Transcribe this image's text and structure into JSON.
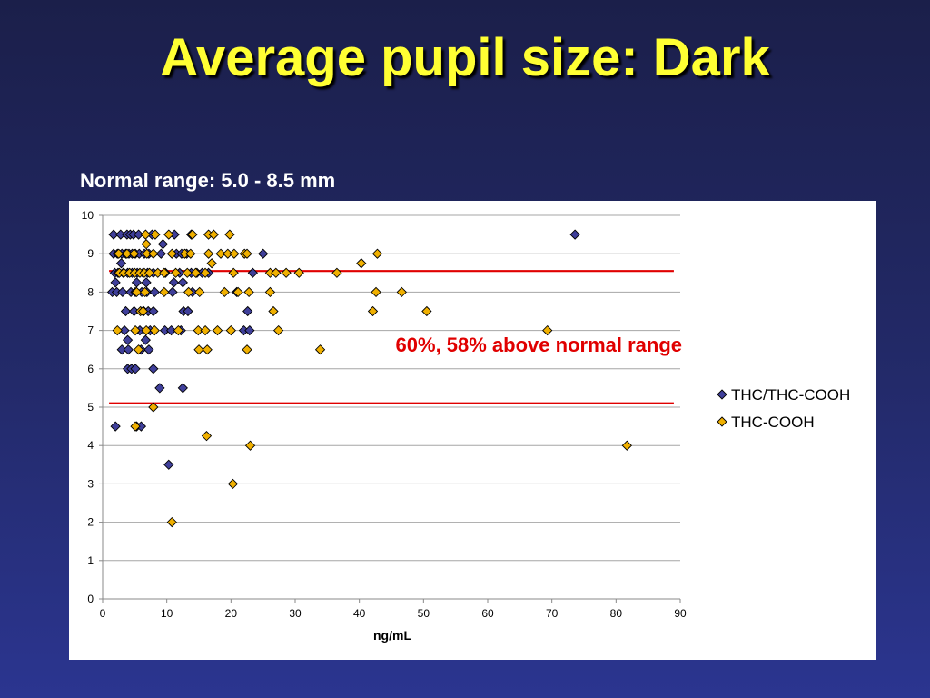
{
  "slide": {
    "title": "Average pupil size:  Dark",
    "subtitle": "Normal range:  5.0 - 8.5 mm"
  },
  "colors": {
    "background": "#232a6a",
    "title": "#ffff33",
    "series1": "#3f3f9a",
    "series2": "#f0b000",
    "reference_line": "#e00000"
  },
  "chart_data": {
    "type": "scatter",
    "title": "Average pupil size:  Dark",
    "xlabel": "ng/mL",
    "ylabel": "",
    "xlim": [
      0,
      90
    ],
    "ylim": [
      0,
      10
    ],
    "x_ticks": [
      "0",
      "10",
      "20",
      "30",
      "40",
      "50",
      "60",
      "70",
      "80",
      "90"
    ],
    "y_ticks": [
      "0",
      "1",
      "2",
      "3",
      "4",
      "5",
      "6",
      "7",
      "8",
      "9",
      "10"
    ],
    "grid": true,
    "legend_position": "right",
    "annotation": "60%, 58% above normal range",
    "reference_lines": [
      {
        "name": "normal-range-upper",
        "y": 8.55,
        "x_start": 1,
        "x_end": 89
      },
      {
        "name": "normal-range-lower",
        "y": 5.1,
        "x_start": 1,
        "x_end": 89
      }
    ],
    "series": [
      {
        "name": "THC/THC-COOH",
        "marker": "diamond",
        "color": "#3f3f9a",
        "points": [
          [
            1.7,
            9.5
          ],
          [
            2.8,
            9.5
          ],
          [
            3.8,
            9.5
          ],
          [
            4.3,
            9.5
          ],
          [
            4.8,
            9.5
          ],
          [
            5.6,
            9.5
          ],
          [
            7.7,
            9.5
          ],
          [
            11.2,
            9.5
          ],
          [
            13.8,
            9.5
          ],
          [
            73.6,
            9.5
          ],
          [
            1.7,
            9
          ],
          [
            2.3,
            9
          ],
          [
            3,
            9
          ],
          [
            3.6,
            9
          ],
          [
            4.1,
            9
          ],
          [
            4.6,
            9
          ],
          [
            5.1,
            9
          ],
          [
            5.7,
            9
          ],
          [
            6.5,
            9
          ],
          [
            7.2,
            9
          ],
          [
            9.1,
            9
          ],
          [
            11.5,
            9
          ],
          [
            12.3,
            9
          ],
          [
            13.1,
            9
          ],
          [
            25,
            9
          ],
          [
            2.9,
            8.75
          ],
          [
            9.4,
            9.25
          ],
          [
            1.9,
            8.5
          ],
          [
            2.4,
            8.5
          ],
          [
            3.2,
            8.5
          ],
          [
            3.9,
            8.5
          ],
          [
            4.6,
            8.5
          ],
          [
            5.4,
            8.5
          ],
          [
            6.3,
            8.5
          ],
          [
            7,
            8.5
          ],
          [
            7.9,
            8.5
          ],
          [
            9.8,
            8.5
          ],
          [
            12,
            8.5
          ],
          [
            13.8,
            8.5
          ],
          [
            14.7,
            8.5
          ],
          [
            15.5,
            8.5
          ],
          [
            16.5,
            8.5
          ],
          [
            23.4,
            8.5
          ],
          [
            2,
            8.25
          ],
          [
            5.3,
            8.25
          ],
          [
            6.8,
            8.25
          ],
          [
            11.1,
            8.25
          ],
          [
            12.5,
            8.25
          ],
          [
            1.5,
            8
          ],
          [
            2.2,
            8
          ],
          [
            3.1,
            8
          ],
          [
            4.4,
            8
          ],
          [
            5.1,
            8
          ],
          [
            6.1,
            8
          ],
          [
            6.9,
            8
          ],
          [
            8.1,
            8
          ],
          [
            10.9,
            8
          ],
          [
            14,
            8
          ],
          [
            20.9,
            8
          ],
          [
            3.6,
            7.5
          ],
          [
            4.9,
            7.5
          ],
          [
            6.4,
            7.5
          ],
          [
            7.1,
            7.5
          ],
          [
            7.9,
            7.5
          ],
          [
            12.6,
            7.5
          ],
          [
            13.3,
            7.5
          ],
          [
            22.6,
            7.5
          ],
          [
            3.4,
            7
          ],
          [
            5.8,
            7
          ],
          [
            7.4,
            7
          ],
          [
            9.7,
            7
          ],
          [
            10.7,
            7
          ],
          [
            12.2,
            7
          ],
          [
            22,
            7
          ],
          [
            22.9,
            7
          ],
          [
            3.9,
            6.75
          ],
          [
            6.7,
            6.75
          ],
          [
            3,
            6.5
          ],
          [
            4,
            6.5
          ],
          [
            6,
            6.5
          ],
          [
            7.2,
            6.5
          ],
          [
            3.9,
            6
          ],
          [
            4.5,
            6
          ],
          [
            5.1,
            6
          ],
          [
            7.9,
            6
          ],
          [
            8.9,
            5.5
          ],
          [
            12.5,
            5.5
          ],
          [
            2,
            4.5
          ],
          [
            5.3,
            4.5
          ],
          [
            6,
            4.5
          ],
          [
            10.3,
            3.5
          ]
        ]
      },
      {
        "name": "THC-COOH",
        "marker": "diamond",
        "color": "#f0b000",
        "points": [
          [
            6.7,
            9.5
          ],
          [
            8.2,
            9.5
          ],
          [
            10.3,
            9.5
          ],
          [
            14,
            9.5
          ],
          [
            16.5,
            9.5
          ],
          [
            17.3,
            9.5
          ],
          [
            19.8,
            9.5
          ],
          [
            6.8,
            9.25
          ],
          [
            2.5,
            9
          ],
          [
            3.8,
            9
          ],
          [
            4.9,
            9
          ],
          [
            6.9,
            9
          ],
          [
            7.9,
            9
          ],
          [
            10.8,
            9
          ],
          [
            12.8,
            9
          ],
          [
            13.7,
            9
          ],
          [
            16.5,
            9
          ],
          [
            18.4,
            9
          ],
          [
            19.5,
            9
          ],
          [
            20.5,
            9
          ],
          [
            22.1,
            9
          ],
          [
            22.5,
            9
          ],
          [
            42.8,
            9
          ],
          [
            17,
            8.75
          ],
          [
            40.3,
            8.75
          ],
          [
            2.6,
            8.5
          ],
          [
            3.3,
            8.5
          ],
          [
            4.2,
            8.5
          ],
          [
            5,
            8.5
          ],
          [
            5.8,
            8.5
          ],
          [
            6.5,
            8.5
          ],
          [
            7.3,
            8.5
          ],
          [
            8.6,
            8.5
          ],
          [
            9.6,
            8.5
          ],
          [
            11.4,
            8.5
          ],
          [
            13.2,
            8.5
          ],
          [
            14.5,
            8.5
          ],
          [
            16,
            8.5
          ],
          [
            20.4,
            8.5
          ],
          [
            26.1,
            8.5
          ],
          [
            27,
            8.5
          ],
          [
            28.6,
            8.5
          ],
          [
            30.6,
            8.5
          ],
          [
            36.5,
            8.5
          ],
          [
            5.3,
            8
          ],
          [
            6.6,
            8
          ],
          [
            9.6,
            8
          ],
          [
            13.4,
            8
          ],
          [
            15.1,
            8
          ],
          [
            19,
            8
          ],
          [
            21.1,
            8
          ],
          [
            22.8,
            8
          ],
          [
            26.1,
            8
          ],
          [
            42.6,
            8
          ],
          [
            46.6,
            8
          ],
          [
            5.9,
            7.5
          ],
          [
            6.3,
            7.5
          ],
          [
            26.6,
            7.5
          ],
          [
            42.1,
            7.5
          ],
          [
            50.5,
            7.5
          ],
          [
            2.3,
            7
          ],
          [
            5.1,
            7
          ],
          [
            6.8,
            7
          ],
          [
            8.1,
            7
          ],
          [
            11.8,
            7
          ],
          [
            14.9,
            7
          ],
          [
            16,
            7
          ],
          [
            17.9,
            7
          ],
          [
            20,
            7
          ],
          [
            27.4,
            7
          ],
          [
            69.3,
            7
          ],
          [
            5.6,
            6.5
          ],
          [
            15,
            6.5
          ],
          [
            16.3,
            6.5
          ],
          [
            22.5,
            6.5
          ],
          [
            33.9,
            6.5
          ],
          [
            7.9,
            5
          ],
          [
            5.1,
            4.5
          ],
          [
            16.2,
            4.25
          ],
          [
            23,
            4
          ],
          [
            81.7,
            4
          ],
          [
            20.3,
            3
          ],
          [
            10.8,
            2
          ]
        ]
      }
    ]
  }
}
